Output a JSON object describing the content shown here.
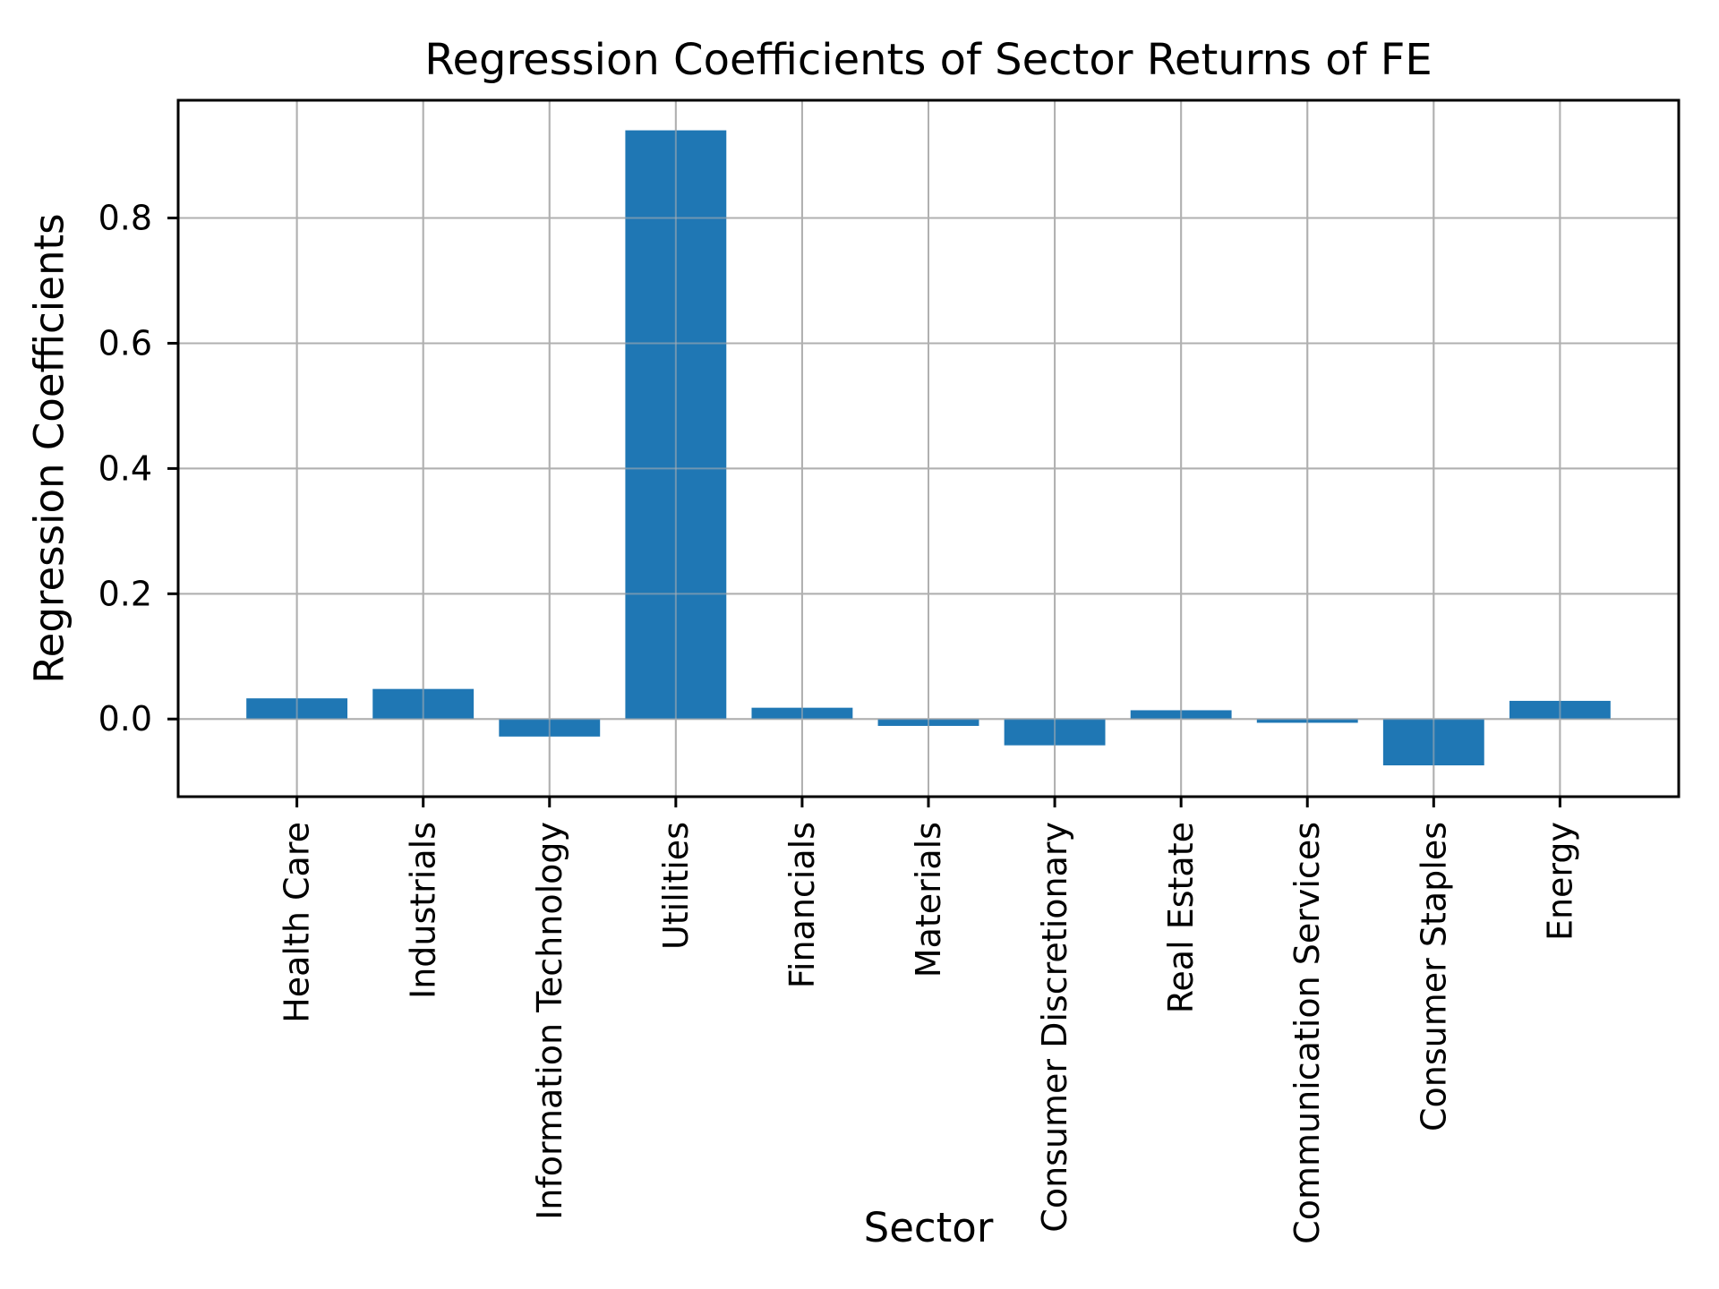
{
  "figure": {
    "background": "#ffffff"
  },
  "chart_data": {
    "type": "bar",
    "title": "Regression Coefficients of Sector Returns of FE",
    "xlabel": "Sector",
    "ylabel": "Regression Coefficients",
    "categories": [
      "Health Care",
      "Industrials",
      "Information Technology",
      "Utilities",
      "Financials",
      "Materials",
      "Consumer Discretionary",
      "Real Estate",
      "Communication Services",
      "Consumer Staples",
      "Energy"
    ],
    "values": [
      0.033,
      0.048,
      -0.028,
      0.94,
      0.018,
      -0.011,
      -0.042,
      0.014,
      -0.006,
      -0.074,
      0.029
    ],
    "bar_width_data_units": 0.8,
    "ylim": [
      -0.124,
      0.988
    ],
    "yticks": [
      0.0,
      0.2,
      0.4,
      0.6,
      0.8
    ],
    "ytick_labels": [
      "0.0",
      "0.2",
      "0.4",
      "0.6",
      "0.8"
    ],
    "grid": true,
    "legend": null,
    "bar_color": "#1f77b4",
    "grid_color": "#b0b0b0",
    "axis_color": "#000000",
    "plot_background": "#ffffff"
  }
}
